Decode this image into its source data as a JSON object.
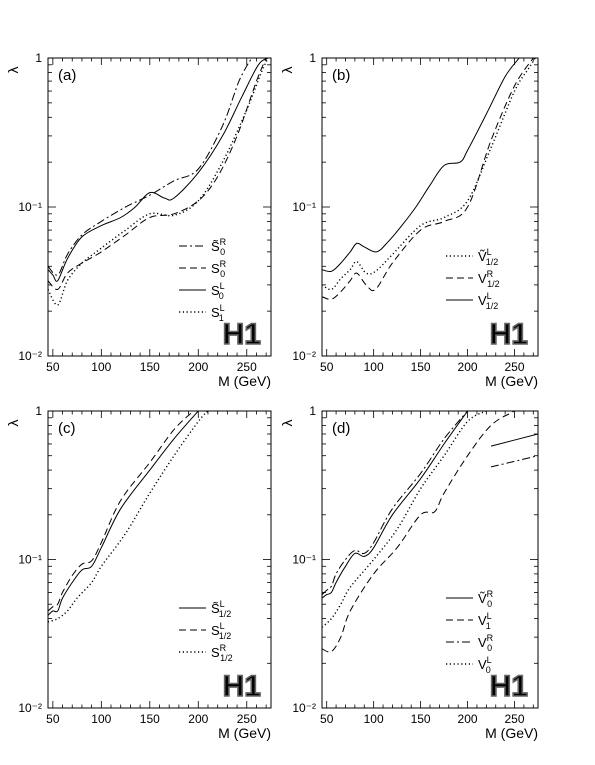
{
  "figure": {
    "logo_text": "H1",
    "x_axis_title": "M (GeV)",
    "y_axis_title": "λ"
  },
  "chart_data": [
    {
      "type": "line",
      "panel_label": "(a)",
      "xlabel": "M (GeV)",
      "ylabel": "λ",
      "xlim": [
        45,
        275
      ],
      "ylim": [
        0.01,
        1
      ],
      "yscale": "log",
      "x_ticks": [
        50,
        100,
        150,
        200,
        250
      ],
      "y_ticks": [
        {
          "value": 0.01,
          "label": "10⁻²"
        },
        {
          "value": 0.1,
          "label": "10⁻¹"
        },
        {
          "value": 1,
          "label": "1"
        }
      ],
      "legend_position": "bottom-right",
      "series": [
        {
          "name": "S̃₀ᴿ",
          "base": "S",
          "tilde": true,
          "sup": "R",
          "sub": "0",
          "style": "dashdot",
          "x": [
            45,
            55,
            65,
            80,
            100,
            125,
            150,
            175,
            200,
            225,
            242,
            255
          ],
          "y": [
            0.04,
            0.035,
            0.048,
            0.065,
            0.08,
            0.1,
            0.12,
            0.15,
            0.18,
            0.35,
            0.7,
            1.0
          ]
        },
        {
          "name": "S₀ᴿ",
          "base": "S",
          "tilde": false,
          "sup": "R",
          "sub": "0",
          "style": "dashed",
          "x": [
            45,
            55,
            65,
            80,
            100,
            125,
            150,
            175,
            200,
            220,
            240,
            260,
            270
          ],
          "y": [
            0.032,
            0.028,
            0.036,
            0.042,
            0.05,
            0.065,
            0.085,
            0.09,
            0.11,
            0.16,
            0.3,
            0.7,
            1.0
          ]
        },
        {
          "name": "S₀ᴸ",
          "base": "S",
          "tilde": false,
          "sup": "L",
          "sub": "0",
          "style": "solid",
          "x": [
            45,
            50,
            55,
            65,
            80,
            100,
            120,
            135,
            150,
            165,
            175,
            200,
            225,
            245,
            262,
            272
          ],
          "y": [
            0.038,
            0.035,
            0.032,
            0.045,
            0.063,
            0.075,
            0.085,
            0.1,
            0.125,
            0.115,
            0.115,
            0.17,
            0.3,
            0.55,
            0.9,
            1.0
          ]
        },
        {
          "name": "S₁ᴸ",
          "base": "S",
          "tilde": false,
          "sup": "L",
          "sub": "1",
          "style": "dotted",
          "x": [
            45,
            55,
            65,
            80,
            100,
            125,
            150,
            175,
            200,
            225,
            250,
            265,
            272
          ],
          "y": [
            0.028,
            0.022,
            0.032,
            0.042,
            0.053,
            0.07,
            0.09,
            0.088,
            0.11,
            0.2,
            0.45,
            0.8,
            1.0
          ]
        }
      ]
    },
    {
      "type": "line",
      "panel_label": "(b)",
      "xlabel": "M (GeV)",
      "ylabel": "λ",
      "xlim": [
        45,
        275
      ],
      "ylim": [
        0.01,
        1
      ],
      "yscale": "log",
      "x_ticks": [
        50,
        100,
        150,
        200,
        250
      ],
      "y_ticks": [
        {
          "value": 0.01,
          "label": "10⁻²"
        },
        {
          "value": 0.1,
          "label": "10⁻¹"
        },
        {
          "value": 1,
          "label": "1"
        }
      ],
      "legend_position": "bottom-right",
      "series": [
        {
          "name": "Ṽᴸ₁/₂",
          "base": "V",
          "tilde": true,
          "sup": "L",
          "sub": "1/2",
          "style": "dotted",
          "x": [
            45,
            55,
            65,
            75,
            82,
            92,
            102,
            120,
            150,
            175,
            200,
            225,
            250,
            265,
            272
          ],
          "y": [
            0.03,
            0.028,
            0.033,
            0.038,
            0.043,
            0.036,
            0.037,
            0.048,
            0.075,
            0.085,
            0.11,
            0.25,
            0.6,
            0.85,
            1.0
          ]
        },
        {
          "name": "Vᴿ₁/₂",
          "base": "V",
          "tilde": false,
          "sup": "R",
          "sub": "1/2",
          "style": "dashed",
          "x": [
            45,
            55,
            65,
            75,
            82,
            92,
            102,
            120,
            150,
            175,
            200,
            225,
            250,
            270
          ],
          "y": [
            0.025,
            0.024,
            0.027,
            0.032,
            0.036,
            0.03,
            0.028,
            0.042,
            0.07,
            0.08,
            0.1,
            0.28,
            0.65,
            1.0
          ]
        },
        {
          "name": "Vᴸ₁/₂",
          "base": "V",
          "tilde": false,
          "sup": "L",
          "sub": "1/2",
          "style": "solid",
          "x": [
            45,
            55,
            65,
            75,
            82,
            90,
            103,
            115,
            130,
            145,
            160,
            175,
            192,
            200,
            220,
            240,
            255
          ],
          "y": [
            0.038,
            0.037,
            0.042,
            0.05,
            0.057,
            0.054,
            0.05,
            0.058,
            0.075,
            0.1,
            0.14,
            0.19,
            0.2,
            0.24,
            0.42,
            0.75,
            1.0
          ]
        }
      ]
    },
    {
      "type": "line",
      "panel_label": "(c)",
      "xlabel": "M (GeV)",
      "ylabel": "λ",
      "xlim": [
        45,
        275
      ],
      "ylim": [
        0.01,
        1
      ],
      "yscale": "log",
      "x_ticks": [
        50,
        100,
        150,
        200,
        250
      ],
      "y_ticks": [
        {
          "value": 0.01,
          "label": "10⁻²"
        },
        {
          "value": 0.1,
          "label": "10⁻¹"
        },
        {
          "value": 1,
          "label": "1"
        }
      ],
      "legend_position": "bottom-right",
      "series": [
        {
          "name": "S̃ᴸ₁/₂",
          "base": "S",
          "tilde": true,
          "sup": "L",
          "sub": "1/2",
          "style": "solid",
          "x": [
            45,
            50,
            55,
            60,
            70,
            80,
            90,
            100,
            120,
            150,
            175,
            200
          ],
          "y": [
            0.042,
            0.045,
            0.045,
            0.055,
            0.07,
            0.085,
            0.09,
            0.12,
            0.22,
            0.4,
            0.65,
            1.0
          ]
        },
        {
          "name": "Sᴸ₁/₂",
          "base": "S",
          "tilde": false,
          "sup": "L",
          "sub": "1/2",
          "style": "dashed",
          "x": [
            45,
            50,
            55,
            60,
            70,
            80,
            90,
            100,
            120,
            150,
            175,
            195
          ],
          "y": [
            0.045,
            0.048,
            0.05,
            0.06,
            0.078,
            0.093,
            0.098,
            0.13,
            0.25,
            0.45,
            0.75,
            1.0
          ]
        },
        {
          "name": "Sᴿ₁/₂",
          "base": "S",
          "tilde": false,
          "sup": "R",
          "sub": "1/2",
          "style": "dotted",
          "x": [
            45,
            55,
            65,
            75,
            90,
            100,
            125,
            150,
            175,
            200,
            210
          ],
          "y": [
            0.038,
            0.04,
            0.045,
            0.055,
            0.07,
            0.09,
            0.15,
            0.28,
            0.5,
            0.85,
            1.0
          ]
        }
      ]
    },
    {
      "type": "line",
      "panel_label": "(d)",
      "xlabel": "M (GeV)",
      "ylabel": "λ",
      "xlim": [
        45,
        275
      ],
      "ylim": [
        0.01,
        1
      ],
      "yscale": "log",
      "x_ticks": [
        50,
        100,
        150,
        200,
        250
      ],
      "y_ticks": [
        {
          "value": 0.01,
          "label": "10⁻²"
        },
        {
          "value": 0.1,
          "label": "10⁻¹"
        },
        {
          "value": 1,
          "label": "1"
        }
      ],
      "legend_position": "bottom-right",
      "series": [
        {
          "name": "Ṽ₀ᴿ",
          "base": "V",
          "tilde": true,
          "sup": "R",
          "sub": "0",
          "style": "solid",
          "x": [
            45,
            50,
            55,
            60,
            70,
            80,
            90,
            100,
            120,
            150,
            175,
            200
          ],
          "y": [
            0.055,
            0.058,
            0.06,
            0.07,
            0.09,
            0.11,
            0.105,
            0.12,
            0.2,
            0.35,
            0.6,
            1.0
          ]
        },
        {
          "name": "Vᴸ₁",
          "base": "V",
          "tilde": false,
          "sup": "L",
          "sub": "1",
          "style": "dashed",
          "x": [
            45,
            55,
            65,
            75,
            100,
            125,
            150,
            165,
            175,
            200,
            225,
            250,
            275
          ],
          "y": [
            0.025,
            0.024,
            0.03,
            0.045,
            0.08,
            0.12,
            0.2,
            0.21,
            0.28,
            0.5,
            0.8,
            1.0,
            1.2
          ]
        },
        {
          "name": "V₀ᴿ",
          "base": "V",
          "tilde": false,
          "sup": "R",
          "sub": "0",
          "style": "dashdot",
          "x": [
            45,
            50,
            55,
            60,
            70,
            80,
            90,
            100,
            120,
            150,
            175,
            200
          ],
          "y": [
            0.058,
            0.062,
            0.066,
            0.08,
            0.1,
            0.115,
            0.11,
            0.13,
            0.22,
            0.38,
            0.65,
            1.0
          ]
        },
        {
          "name": "V₀ᴸ",
          "base": "V",
          "tilde": false,
          "sup": "L",
          "sub": "0",
          "style": "dotted",
          "x": [
            45,
            55,
            65,
            75,
            100,
            125,
            150,
            175,
            200,
            220
          ],
          "y": [
            0.035,
            0.04,
            0.05,
            0.065,
            0.1,
            0.16,
            0.3,
            0.5,
            0.85,
            1.0
          ]
        }
      ],
      "extra_lines": [
        {
          "style": "solid",
          "x": [
            225,
            275
          ],
          "y": [
            0.58,
            0.7
          ]
        },
        {
          "style": "dashdot",
          "x": [
            225,
            275
          ],
          "y": [
            0.42,
            0.5
          ]
        }
      ]
    }
  ]
}
